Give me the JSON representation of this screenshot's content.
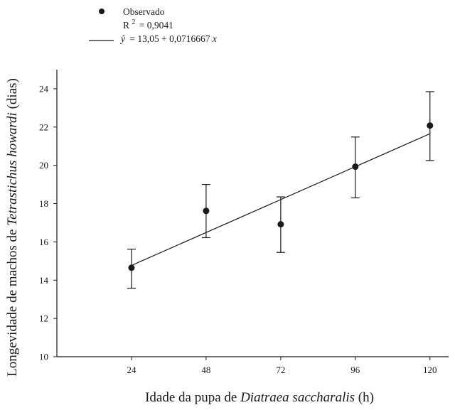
{
  "chart_data": {
    "type": "scatter",
    "legend": {
      "observed_label": "Observado",
      "r2_prefix": "R",
      "r2_superscript": "2",
      "r2_value": "= 0,9041",
      "fit_yhat": "ŷ",
      "fit_equation": "= 13,05 + 0,0716667",
      "fit_var": "x",
      "placement": "top-left"
    },
    "xlabel": {
      "pre": "Idade da pupa de ",
      "italic": "Diatraea saccharalis",
      "post": " (h)"
    },
    "ylabel": {
      "pre": "Longevidade de machos de ",
      "italic": "Tetrastichus howardi",
      "post": " (dias)"
    },
    "xlim": [
      0,
      126
    ],
    "ylim": [
      10,
      25
    ],
    "x_ticks": [
      24,
      48,
      72,
      96,
      120
    ],
    "x_tick_labels": [
      "24",
      "48",
      "72",
      "96",
      "120"
    ],
    "y_ticks": [
      10,
      12,
      14,
      16,
      18,
      20,
      22,
      24
    ],
    "y_tick_labels": [
      "10",
      "12",
      "14",
      "16",
      "18",
      "20",
      "22",
      "24"
    ],
    "series": [
      {
        "name": "Observado",
        "x": [
          24,
          48,
          72,
          96,
          120
        ],
        "y": [
          14.65,
          17.62,
          16.92,
          19.93,
          22.08
        ],
        "err_low": [
          13.58,
          16.22,
          15.45,
          18.3,
          20.25
        ],
        "err_high": [
          15.62,
          19.0,
          18.35,
          21.48,
          23.85
        ]
      }
    ],
    "fit": {
      "intercept": 13.05,
      "slope": 0.0716667,
      "x_range": [
        24,
        120
      ]
    },
    "grid": false
  }
}
